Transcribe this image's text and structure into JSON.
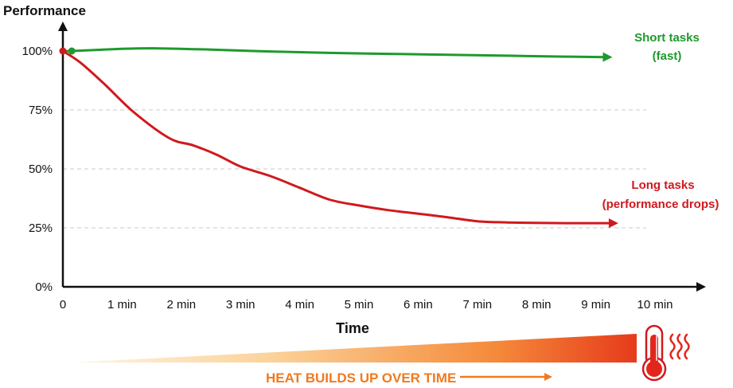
{
  "chart_data": {
    "type": "line",
    "ylabel": "Performance",
    "xlabel": "Time",
    "x_ticks": [
      "0",
      "1 min",
      "2 min",
      "3 min",
      "4 min",
      "5 min",
      "6 min",
      "7 min",
      "8 min",
      "9 min",
      "10 min"
    ],
    "y_ticks": [
      "0%",
      "25%",
      "50%",
      "75%",
      "100%"
    ],
    "xlim": [
      0,
      10
    ],
    "ylim": [
      0,
      100
    ],
    "grid": "dashed horizontal at 25%, 50%, 75%",
    "series": [
      {
        "label_line1": "Short tasks",
        "label_line2": "(fast)",
        "color": "#1e9a2c",
        "x": [
          0,
          0.15,
          1,
          1.6,
          2.5,
          3.5,
          4.5,
          5.5,
          6.5,
          7.5,
          8.5,
          9.2
        ],
        "y": [
          100,
          100,
          100.9,
          101.1,
          100.6,
          99.8,
          99.2,
          98.8,
          98.4,
          98.0,
          97.6,
          97.4
        ]
      },
      {
        "label_line1": "Long tasks",
        "label_line2": "(performance drops)",
        "color": "#d0191e",
        "x": [
          0,
          0.3,
          0.7,
          1.2,
          1.8,
          2.2,
          2.6,
          3.0,
          3.5,
          4.0,
          4.5,
          5.0,
          5.5,
          6.0,
          6.5,
          7.0,
          7.5,
          8.0,
          8.5,
          9.0,
          9.3
        ],
        "y": [
          100,
          95,
          86,
          74,
          63,
          60,
          56,
          51,
          47,
          42,
          37,
          34.5,
          32.5,
          31,
          29.5,
          27.8,
          27.3,
          27.1,
          27,
          27,
          27
        ]
      }
    ]
  },
  "heat_banner": {
    "text": "HEAT BUILDS UP OVER TIME",
    "gradient_start": "#fde2b8",
    "gradient_mid": "#f7a048",
    "gradient_end": "#e8391a",
    "text_color": "#f07a1f",
    "icon": "thermometer-icon",
    "heat_waves_icon": "heat-waves-icon"
  }
}
